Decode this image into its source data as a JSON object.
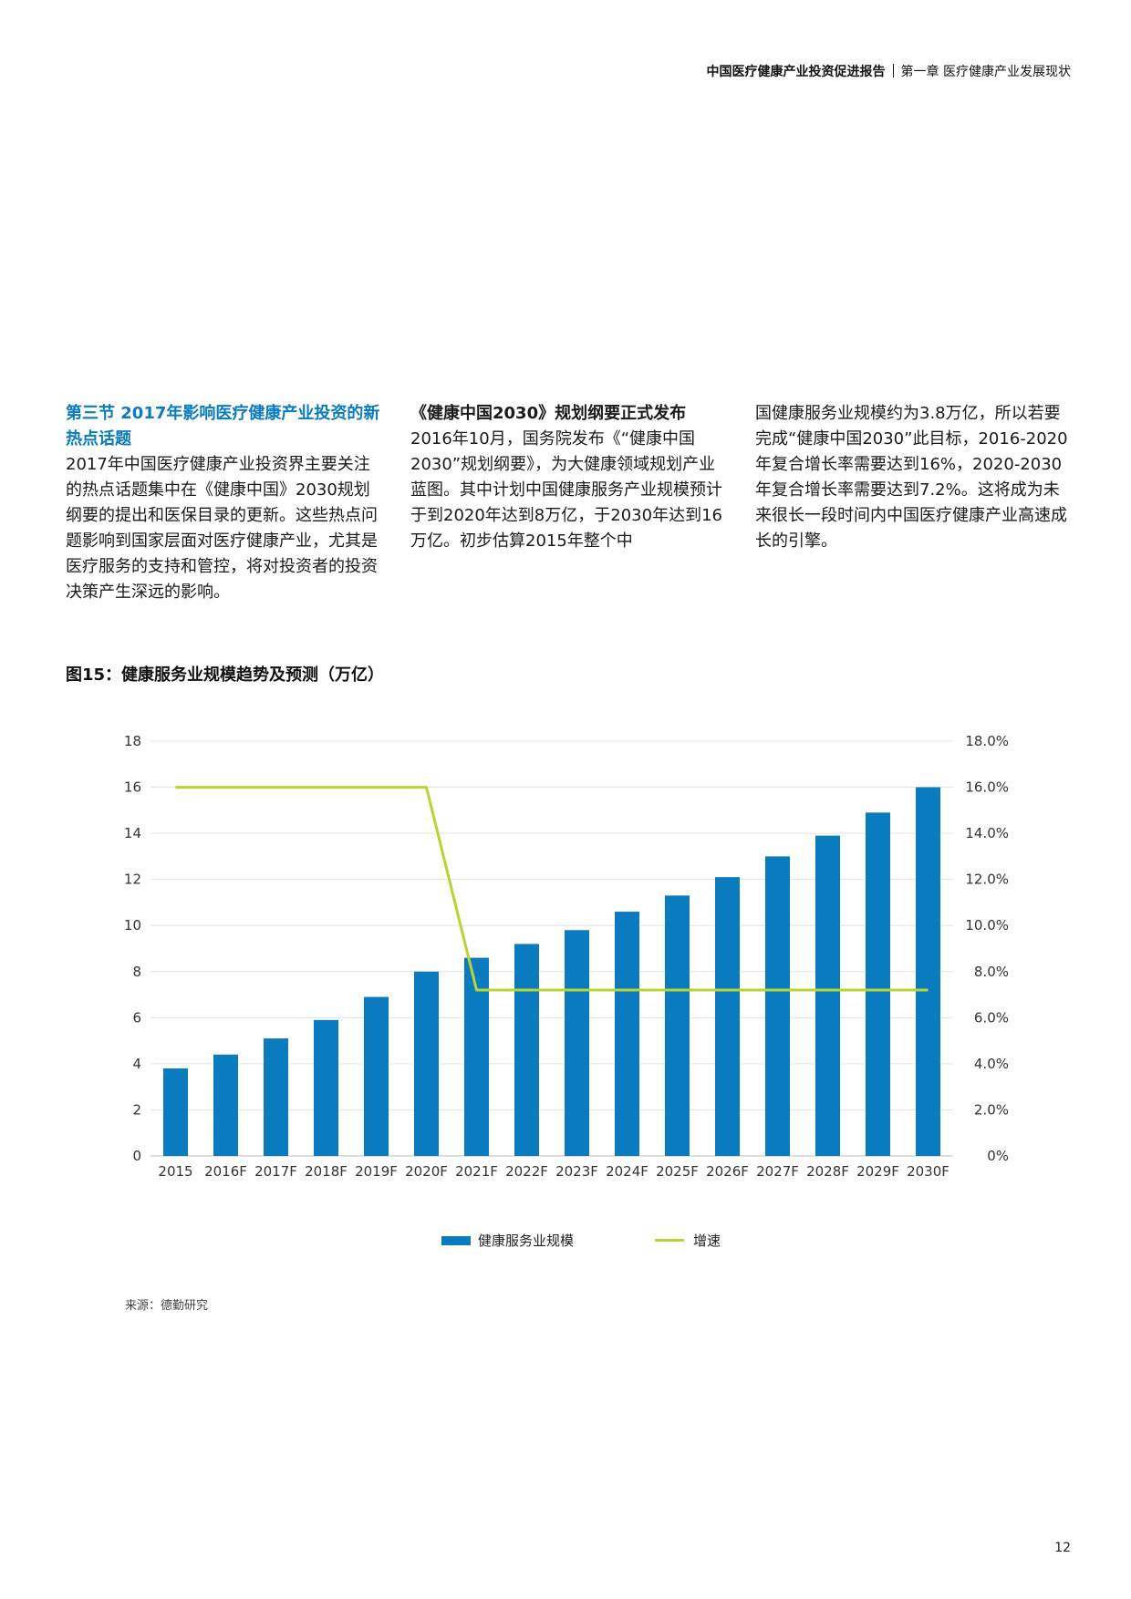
{
  "header": {
    "report_title": "中国医疗健康产业投资促进报告",
    "chapter": "第一章  医疗健康产业发展现状"
  },
  "columns": {
    "col1": {
      "heading": "第三节  2017年影响医疗健康产业投资的新热点话题",
      "body": "2017年中国医疗健康产业投资界主要关注的热点话题集中在《健康中国》2030规划纲要的提出和医保目录的更新。这些热点问题影响到国家层面对医疗健康产业，尤其是医疗服务的支持和管控，将对投资者的投资决策产生深远的影响。"
    },
    "col2": {
      "heading": "《健康中国2030》规划纲要正式发布",
      "body": "2016年10月，国务院发布《“健康中国2030”规划纲要》，为大健康领域规划产业蓝图。其中计划中国健康服务产业规模预计于到2020年达到8万亿，于2030年达到16万亿。初步估算2015年整个中"
    },
    "col3": {
      "body": "国健康服务业规模约为3.8万亿，所以若要完成“健康中国2030”此目标，2016-2020年复合增长率需要达到16%，2020-2030年复合增长率需要达到7.2%。这将成为未来很长一段时间内中国医疗健康产业高速成长的引擎。"
    }
  },
  "figure": {
    "title": "图15：健康服务业规模趋势及预测（万亿）",
    "legend_bar": "健康服务业规模",
    "legend_line": "增速",
    "source": "来源：德勤研究"
  },
  "chart_data": {
    "type": "bar",
    "categories": [
      "2015",
      "2016F",
      "2017F",
      "2018F",
      "2019F",
      "2020F",
      "2021F",
      "2022F",
      "2023F",
      "2024F",
      "2025F",
      "2026F",
      "2027F",
      "2028F",
      "2029F",
      "2030F"
    ],
    "series": [
      {
        "name": "健康服务业规模",
        "type": "bar",
        "axis": "left",
        "color": "#0a7bbf",
        "values": [
          3.8,
          4.4,
          5.1,
          5.9,
          6.9,
          8.0,
          8.6,
          9.2,
          9.8,
          10.6,
          11.3,
          12.1,
          13.0,
          13.9,
          14.9,
          16.0
        ]
      },
      {
        "name": "增速",
        "type": "line",
        "axis": "right",
        "color": "#b8d432",
        "values": [
          16.0,
          16.0,
          16.0,
          16.0,
          16.0,
          16.0,
          7.2,
          7.2,
          7.2,
          7.2,
          7.2,
          7.2,
          7.2,
          7.2,
          7.2,
          7.2
        ]
      }
    ],
    "ylim": [
      0,
      18
    ],
    "yticks": [
      "0",
      "2",
      "4",
      "6",
      "8",
      "10",
      "12",
      "14",
      "16",
      "18"
    ],
    "y2lim": [
      0,
      18
    ],
    "y2ticks": [
      "0%",
      "2.0%",
      "4.0%",
      "6.0%",
      "8.0%",
      "10.0%",
      "12.0%",
      "14.0%",
      "16.0%",
      "18.0%"
    ],
    "grid": true,
    "legend": "bottom"
  },
  "page": {
    "number": "12"
  }
}
